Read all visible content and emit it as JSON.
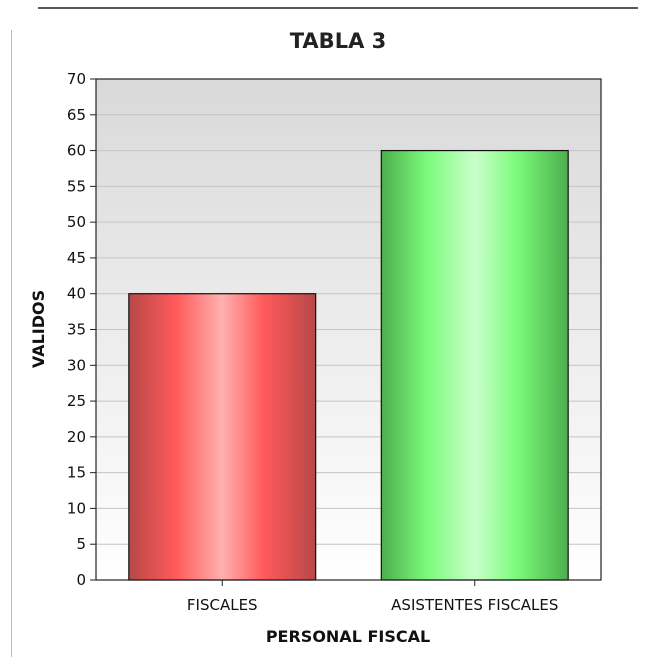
{
  "chart_data": {
    "type": "bar",
    "title": "TABLA 3",
    "xlabel": "PERSONAL FISCAL",
    "ylabel": "VALIDOS",
    "categories": [
      "FISCALES",
      "ASISTENTES FISCALES"
    ],
    "values": [
      40,
      60
    ],
    "ylim": [
      0,
      70
    ],
    "ytick_step": 5,
    "grid": true,
    "legend": "none",
    "colors": [
      "#ff5a5a",
      "#66ee66"
    ]
  }
}
